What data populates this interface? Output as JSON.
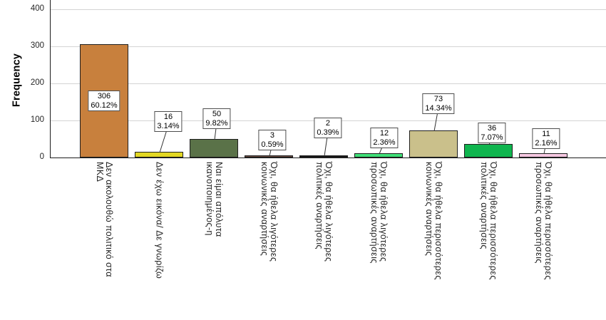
{
  "chart_data": {
    "type": "bar",
    "title": "",
    "xlabel": "",
    "ylabel": "Frequency",
    "y_ticks": [
      0,
      100,
      200,
      300,
      400
    ],
    "ylim": [
      0,
      425
    ],
    "grid": "horizontal",
    "legend": "none",
    "categories": [
      "Δεν ακολουθώ πολιτικό στα ΜΚΔ",
      "Δεν έχω εικόνα/ Δε γνωρίζω",
      "Ναι είμαι απόλυτα ικανοποιημένος-η",
      "Όχι, θα ήθελα λιγότερες κοινωνικές αναρτήσεις",
      "Όχι, θα ήθελα λιγότερες πολιτικές αναρτήσεις",
      "Όχι, θα ήθελα λιγότερες προσωπικές αναρτήσεις",
      "Όχι, θα ήθελα περισσότερες κοινωνικές αναρτήσεις",
      "Όχι, θα ήθελα περισσότερες πολιτικές αναρτήσεις",
      "Όχι, θα ήθελα περισσότερες προσωπικές αναρτήσεις"
    ],
    "category_label_lines": [
      [
        "Δεν ακολουθώ πολιτικό στα",
        "ΜΚΔ"
      ],
      [
        "Δεν έχω εικόνα/ Δε γνωρίζω"
      ],
      [
        "Ναι είμαι απόλυτα",
        "ικανοποιημένος-η"
      ],
      [
        "Όχι, θα ήθελα λιγότερες",
        "κοινωνικές αναρτήσεις"
      ],
      [
        "Όχι, θα ήθελα λιγότερες",
        "πολιτικές αναρτήσεις"
      ],
      [
        "Όχι, θα ήθελα λιγότερες",
        "προσωπικές αναρτήσεις"
      ],
      [
        "Όχι, θα ήθελα περισσότερες",
        "κοινωνικές αναρτήσεις"
      ],
      [
        "Όχι, θα ήθελα περισσότερες",
        "πολιτικές αναρτήσεις"
      ],
      [
        "Όχι, θα ήθελα περισσότερες",
        "προσωπικές αναρτήσεις"
      ]
    ],
    "values": [
      306,
      16,
      50,
      3,
      2,
      12,
      73,
      36,
      11
    ],
    "value_labels": [
      "306",
      "16",
      "50",
      "3",
      "2",
      "12",
      "73",
      "36",
      "11"
    ],
    "percent_labels": [
      "60.12%",
      "3.14%",
      "9.82%",
      "0.59%",
      "0.39%",
      "2.36%",
      "14.34%",
      "7.07%",
      "2.16%"
    ],
    "bar_colors": [
      "#c8803d",
      "#e2d723",
      "#5a7248",
      "#6e4c41",
      "#141414",
      "#3fdf77",
      "#cac08b",
      "#0fb54e",
      "#f4c7e0"
    ],
    "colors": {
      "gridline": "#d4d4d4",
      "axis": "#1c1c1c",
      "callout_border": "#4d4d4d",
      "callout_background": "#ffffff",
      "text": "#262626"
    }
  }
}
